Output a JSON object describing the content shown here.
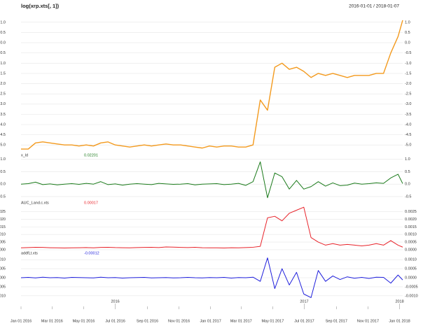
{
  "chart_data": {
    "type": "line",
    "title": "log(xrp.xts[, 1])",
    "subtitle": "2016-01-01 / 2018-01-07",
    "x": [
      "2016-01-01",
      "2016-01-15",
      "2016-01-29",
      "2016-02-12",
      "2016-02-26",
      "2016-03-11",
      "2016-03-25",
      "2016-04-08",
      "2016-04-22",
      "2016-05-06",
      "2016-05-20",
      "2016-06-03",
      "2016-06-17",
      "2016-07-01",
      "2016-07-15",
      "2016-07-29",
      "2016-08-12",
      "2016-08-26",
      "2016-09-09",
      "2016-09-23",
      "2016-10-07",
      "2016-10-21",
      "2016-11-04",
      "2016-11-18",
      "2016-12-02",
      "2016-12-16",
      "2016-12-30",
      "2017-01-13",
      "2017-01-27",
      "2017-02-10",
      "2017-02-24",
      "2017-03-10",
      "2017-03-24",
      "2017-04-07",
      "2017-04-21",
      "2017-05-05",
      "2017-05-19",
      "2017-06-02",
      "2017-06-16",
      "2017-06-30",
      "2017-07-14",
      "2017-07-28",
      "2017-08-11",
      "2017-08-25",
      "2017-09-08",
      "2017-09-22",
      "2017-10-06",
      "2017-10-20",
      "2017-11-03",
      "2017-11-17",
      "2017-12-01",
      "2017-12-15",
      "2017-12-29",
      "2018-01-07"
    ],
    "xlim": [
      "2016-01-01",
      "2018-01-07"
    ],
    "xticks": [
      {
        "value": "2016-01-01",
        "label": "Jan 01 2016"
      },
      {
        "value": "2016-03-01",
        "label": "Mar 01 2016"
      },
      {
        "value": "2016-05-01",
        "label": "May 01 2016"
      },
      {
        "value": "2016-07-01",
        "label": "Jul 01 2016"
      },
      {
        "value": "2016-09-01",
        "label": "Sep 01 2016"
      },
      {
        "value": "2016-11-01",
        "label": "Nov 01 2016"
      },
      {
        "value": "2017-01-01",
        "label": "Jan 01 2017"
      },
      {
        "value": "2017-03-01",
        "label": "Mar 01 2017"
      },
      {
        "value": "2017-05-01",
        "label": "May 01 2017"
      },
      {
        "value": "2017-07-01",
        "label": "Jul 01 2017"
      },
      {
        "value": "2017-09-01",
        "label": "Sep 01 2017"
      },
      {
        "value": "2017-11-01",
        "label": "Nov 01 2017"
      },
      {
        "value": "2018-01-01",
        "label": "Jan 01 2018"
      }
    ],
    "year_ticks": [
      {
        "value": "2016-07-01",
        "label": "2016"
      },
      {
        "value": "2017-07-01",
        "label": "2017"
      },
      {
        "value": "2018-01-01",
        "label": "2018"
      }
    ],
    "grid": true,
    "series": [
      {
        "color": "#f39a1e",
        "values": [
          -5.2,
          -5.2,
          -4.9,
          -4.85,
          -4.9,
          -4.95,
          -5.0,
          -5.0,
          -5.05,
          -5.0,
          -5.05,
          -4.9,
          -4.85,
          -5.0,
          -5.05,
          -5.1,
          -5.05,
          -5.0,
          -5.05,
          -5.0,
          -4.95,
          -5.0,
          -5.0,
          -5.05,
          -5.1,
          -5.15,
          -5.05,
          -5.1,
          -5.05,
          -5.05,
          -5.1,
          -5.1,
          -5.0,
          -2.8,
          -3.3,
          -1.2,
          -1.0,
          -1.3,
          -1.2,
          -1.4,
          -1.7,
          -1.5,
          -1.6,
          -1.5,
          -1.6,
          -1.7,
          -1.6,
          -1.6,
          -1.6,
          -1.5,
          -1.5,
          -0.5,
          0.3,
          1.1
        ],
        "ylim": [
          -5.3,
          1.2
        ],
        "yticks": [
          {
            "value": 1,
            "label": "1.0"
          },
          0.5,
          {
            "value": 0,
            "label": "0.0"
          },
          -0.5,
          {
            "value": -1,
            "label": "-1.0"
          },
          -1.5,
          {
            "value": -2,
            "label": "-2.0"
          },
          -2.5,
          {
            "value": -3,
            "label": "-3.0"
          },
          -3.5,
          {
            "value": -4,
            "label": "-4.0"
          },
          -4.5,
          {
            "value": -5,
            "label": "-5.0"
          }
        ]
      },
      {
        "name": "x_ld",
        "color": "#1a7a1a",
        "values": [
          0.0,
          0.02,
          0.08,
          -0.02,
          0.01,
          -0.03,
          0.0,
          0.02,
          -0.01,
          0.03,
          0.0,
          0.1,
          -0.02,
          0.01,
          -0.04,
          0.0,
          0.02,
          0.0,
          -0.02,
          0.03,
          0.01,
          -0.01,
          0.0,
          0.02,
          -0.03,
          0.0,
          0.01,
          0.02,
          -0.02,
          0.0,
          0.03,
          -0.05,
          0.1,
          0.9,
          -0.55,
          0.45,
          0.3,
          -0.2,
          0.15,
          -0.2,
          -0.1,
          0.1,
          -0.08,
          0.05,
          -0.06,
          -0.04,
          0.04,
          0.0,
          0.02,
          0.05,
          0.03,
          0.25,
          0.4,
          0.02201
        ],
        "ylim": [
          -0.7,
          1.05
        ],
        "yticks": [
          {
            "value": 1,
            "label": "1.0"
          },
          0.5,
          {
            "value": 0,
            "label": "0.0"
          },
          -0.5
        ]
      },
      {
        "name": "AUC_Land.c.xts",
        "color": "#e8232a",
        "values": [
          0.00012,
          0.00014,
          0.00016,
          0.00015,
          0.00013,
          0.00012,
          0.00011,
          0.00012,
          0.00013,
          0.00014,
          0.00012,
          0.00015,
          0.00016,
          0.00014,
          0.00013,
          0.00012,
          0.00014,
          0.00015,
          0.00016,
          0.00014,
          0.00018,
          0.00017,
          0.00015,
          0.00014,
          0.00016,
          0.00013,
          0.00012,
          0.00012,
          0.00011,
          0.00013,
          0.00012,
          0.00014,
          0.00016,
          0.00022,
          0.0021,
          0.0022,
          0.0019,
          0.0024,
          0.0026,
          0.0028,
          0.0008,
          0.0005,
          0.0003,
          0.0004,
          0.0003,
          0.00035,
          0.0003,
          0.00025,
          0.0003,
          0.0004,
          0.0003,
          0.0006,
          0.0003,
          0.00017
        ],
        "ylim": [
          -5e-05,
          0.0029
        ],
        "yticks": [
          0.0025,
          {
            "value": 0.002,
            "label": "0.0020"
          },
          0.0015,
          {
            "value": 0.001,
            "label": "0.0010"
          },
          0.0005,
          {
            "value": 0,
            "label": "0.0000"
          }
        ]
      },
      {
        "name": "addfLt.xts",
        "color": "#1f1fdc",
        "values": [
          0.0,
          2e-05,
          -1e-05,
          3e-05,
          0.0,
          1e-05,
          -2e-05,
          2e-05,
          1e-05,
          0.0,
          -1e-05,
          3e-05,
          0.0,
          1e-05,
          -2e-05,
          0.0,
          1e-05,
          2e-05,
          -1e-05,
          0.0,
          1e-05,
          -1e-05,
          0.0,
          2e-05,
          0.0,
          -1e-05,
          1e-05,
          0.0,
          2e-05,
          -2e-05,
          1e-05,
          0.0,
          3e-05,
          -0.0002,
          0.0011,
          -0.0006,
          0.0005,
          -0.0004,
          0.0003,
          -0.0009,
          -0.0011,
          0.0004,
          -0.0002,
          0.0001,
          -0.0001,
          5e-05,
          -3e-05,
          2e-05,
          -4e-05,
          3e-05,
          2e-05,
          -0.0003,
          0.00015,
          -0.00012
        ],
        "ylim": [
          -0.0012,
          0.0012
        ],
        "yticks": [
          {
            "value": 0.001,
            "label": "0.0010"
          },
          0.0005,
          {
            "value": 0,
            "label": "0.0000"
          },
          -0.0005,
          {
            "value": -0.001,
            "label": "-0.0010"
          }
        ]
      }
    ]
  }
}
